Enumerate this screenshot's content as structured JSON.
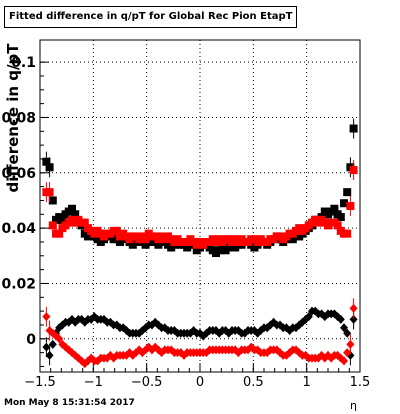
{
  "title": "Fitted difference in q/pT for Global Rec Pion EtapT",
  "timestamp": "Mon May  8 15:31:54 2017",
  "chart_data": {
    "type": "scatter",
    "title": "Fitted difference in q/pT for Global Rec Pion EtapT",
    "xlabel": "η",
    "ylabel": "difference in q/pT",
    "xlim": [
      -1.5,
      1.5
    ],
    "ylim": [
      -0.012,
      0.108
    ],
    "grid": true,
    "x_ticks": [
      "−1.5",
      "−1",
      "−0.5",
      "0",
      "0.5",
      "1",
      "1.5"
    ],
    "y_ticks": [
      "0",
      "0.02",
      "0.04",
      "0.06",
      "0.08",
      "0.1"
    ],
    "series": [
      {
        "marker": "square",
        "color": "#000000",
        "x": [
          -1.44,
          -1.41,
          -1.38,
          -1.35,
          -1.32,
          -1.29,
          -1.26,
          -1.23,
          -1.2,
          -1.17,
          -1.14,
          -1.11,
          -1.08,
          -1.05,
          -1.02,
          -0.99,
          -0.96,
          -0.93,
          -0.9,
          -0.87,
          -0.84,
          -0.81,
          -0.78,
          -0.75,
          -0.72,
          -0.69,
          -0.66,
          -0.63,
          -0.6,
          -0.57,
          -0.54,
          -0.51,
          -0.48,
          -0.45,
          -0.42,
          -0.39,
          -0.36,
          -0.33,
          -0.3,
          -0.27,
          -0.24,
          -0.21,
          -0.18,
          -0.15,
          -0.12,
          -0.09,
          -0.06,
          -0.03,
          0.0,
          0.03,
          0.06,
          0.09,
          0.12,
          0.15,
          0.18,
          0.21,
          0.24,
          0.27,
          0.3,
          0.33,
          0.36,
          0.39,
          0.42,
          0.45,
          0.48,
          0.51,
          0.54,
          0.57,
          0.6,
          0.63,
          0.66,
          0.69,
          0.72,
          0.75,
          0.78,
          0.81,
          0.84,
          0.87,
          0.9,
          0.93,
          0.96,
          0.99,
          1.02,
          1.05,
          1.08,
          1.11,
          1.14,
          1.17,
          1.2,
          1.23,
          1.26,
          1.29,
          1.32,
          1.35,
          1.38,
          1.41,
          1.44
        ],
        "y": [
          0.064,
          0.062,
          0.05,
          0.043,
          0.044,
          0.043,
          0.045,
          0.046,
          0.047,
          0.045,
          0.042,
          0.041,
          0.038,
          0.037,
          0.038,
          0.037,
          0.036,
          0.035,
          0.036,
          0.037,
          0.037,
          0.036,
          0.036,
          0.035,
          0.037,
          0.036,
          0.035,
          0.034,
          0.035,
          0.036,
          0.035,
          0.034,
          0.035,
          0.036,
          0.035,
          0.034,
          0.035,
          0.035,
          0.034,
          0.033,
          0.034,
          0.035,
          0.034,
          0.034,
          0.033,
          0.034,
          0.034,
          0.032,
          0.033,
          0.034,
          0.034,
          0.033,
          0.032,
          0.031,
          0.032,
          0.033,
          0.032,
          0.033,
          0.034,
          0.033,
          0.034,
          0.034,
          0.035,
          0.035,
          0.034,
          0.033,
          0.034,
          0.035,
          0.035,
          0.034,
          0.035,
          0.036,
          0.037,
          0.036,
          0.035,
          0.036,
          0.037,
          0.036,
          0.038,
          0.037,
          0.038,
          0.039,
          0.04,
          0.041,
          0.043,
          0.043,
          0.044,
          0.046,
          0.045,
          0.046,
          0.047,
          0.045,
          0.044,
          0.049,
          0.053,
          0.062,
          0.076
        ]
      },
      {
        "marker": "square",
        "color": "#ff0000",
        "x": [
          -1.44,
          -1.41,
          -1.38,
          -1.35,
          -1.32,
          -1.29,
          -1.26,
          -1.23,
          -1.2,
          -1.17,
          -1.14,
          -1.11,
          -1.08,
          -1.05,
          -1.02,
          -0.99,
          -0.96,
          -0.93,
          -0.9,
          -0.87,
          -0.84,
          -0.81,
          -0.78,
          -0.75,
          -0.72,
          -0.69,
          -0.66,
          -0.63,
          -0.6,
          -0.57,
          -0.54,
          -0.51,
          -0.48,
          -0.45,
          -0.42,
          -0.39,
          -0.36,
          -0.33,
          -0.3,
          -0.27,
          -0.24,
          -0.21,
          -0.18,
          -0.15,
          -0.12,
          -0.09,
          -0.06,
          -0.03,
          0.0,
          0.03,
          0.06,
          0.09,
          0.12,
          0.15,
          0.18,
          0.21,
          0.24,
          0.27,
          0.3,
          0.33,
          0.36,
          0.39,
          0.42,
          0.45,
          0.48,
          0.51,
          0.54,
          0.57,
          0.6,
          0.63,
          0.66,
          0.69,
          0.72,
          0.75,
          0.78,
          0.81,
          0.84,
          0.87,
          0.9,
          0.93,
          0.96,
          0.99,
          1.02,
          1.05,
          1.08,
          1.11,
          1.14,
          1.17,
          1.2,
          1.23,
          1.26,
          1.29,
          1.32,
          1.35,
          1.38,
          1.41,
          1.44
        ],
        "y": [
          0.053,
          0.053,
          0.041,
          0.038,
          0.038,
          0.04,
          0.041,
          0.042,
          0.043,
          0.042,
          0.043,
          0.042,
          0.042,
          0.04,
          0.039,
          0.038,
          0.039,
          0.038,
          0.037,
          0.038,
          0.038,
          0.039,
          0.039,
          0.037,
          0.038,
          0.037,
          0.036,
          0.037,
          0.037,
          0.036,
          0.037,
          0.036,
          0.038,
          0.037,
          0.037,
          0.036,
          0.037,
          0.036,
          0.037,
          0.036,
          0.035,
          0.036,
          0.035,
          0.035,
          0.035,
          0.036,
          0.035,
          0.034,
          0.035,
          0.034,
          0.035,
          0.035,
          0.036,
          0.035,
          0.036,
          0.035,
          0.036,
          0.036,
          0.035,
          0.036,
          0.035,
          0.036,
          0.035,
          0.035,
          0.036,
          0.036,
          0.035,
          0.036,
          0.035,
          0.035,
          0.036,
          0.036,
          0.037,
          0.037,
          0.036,
          0.037,
          0.038,
          0.038,
          0.039,
          0.04,
          0.039,
          0.04,
          0.041,
          0.042,
          0.043,
          0.042,
          0.043,
          0.042,
          0.041,
          0.042,
          0.042,
          0.041,
          0.039,
          0.038,
          0.038,
          0.048,
          0.061
        ]
      },
      {
        "marker": "diamond",
        "color": "#000000",
        "x": [
          -1.44,
          -1.41,
          -1.38,
          -1.35,
          -1.32,
          -1.29,
          -1.26,
          -1.23,
          -1.2,
          -1.17,
          -1.14,
          -1.11,
          -1.08,
          -1.05,
          -1.02,
          -0.99,
          -0.96,
          -0.93,
          -0.9,
          -0.87,
          -0.84,
          -0.81,
          -0.78,
          -0.75,
          -0.72,
          -0.69,
          -0.66,
          -0.63,
          -0.6,
          -0.57,
          -0.54,
          -0.51,
          -0.48,
          -0.45,
          -0.42,
          -0.39,
          -0.36,
          -0.33,
          -0.3,
          -0.27,
          -0.24,
          -0.21,
          -0.18,
          -0.15,
          -0.12,
          -0.09,
          -0.06,
          -0.03,
          0.0,
          0.03,
          0.06,
          0.09,
          0.12,
          0.15,
          0.18,
          0.21,
          0.24,
          0.27,
          0.3,
          0.33,
          0.36,
          0.39,
          0.42,
          0.45,
          0.48,
          0.51,
          0.54,
          0.57,
          0.6,
          0.63,
          0.66,
          0.69,
          0.72,
          0.75,
          0.78,
          0.81,
          0.84,
          0.87,
          0.9,
          0.93,
          0.96,
          0.99,
          1.02,
          1.05,
          1.08,
          1.11,
          1.14,
          1.17,
          1.2,
          1.23,
          1.26,
          1.29,
          1.32,
          1.35,
          1.38,
          1.41,
          1.44
        ],
        "y": [
          -0.003,
          -0.006,
          -0.002,
          0.002,
          0.004,
          0.005,
          0.006,
          0.006,
          0.007,
          0.006,
          0.007,
          0.007,
          0.006,
          0.007,
          0.007,
          0.008,
          0.007,
          0.007,
          0.007,
          0.006,
          0.006,
          0.005,
          0.005,
          0.004,
          0.004,
          0.003,
          0.002,
          0.002,
          0.002,
          0.002,
          0.003,
          0.004,
          0.005,
          0.005,
          0.006,
          0.005,
          0.004,
          0.004,
          0.003,
          0.003,
          0.003,
          0.002,
          0.002,
          0.002,
          0.002,
          0.002,
          0.003,
          0.002,
          0.002,
          0.001,
          0.002,
          0.003,
          0.003,
          0.003,
          0.002,
          0.003,
          0.003,
          0.002,
          0.003,
          0.003,
          0.003,
          0.002,
          0.002,
          0.003,
          0.003,
          0.003,
          0.002,
          0.003,
          0.004,
          0.004,
          0.005,
          0.006,
          0.005,
          0.005,
          0.004,
          0.004,
          0.003,
          0.004,
          0.004,
          0.005,
          0.006,
          0.007,
          0.008,
          0.01,
          0.01,
          0.009,
          0.009,
          0.008,
          0.009,
          0.009,
          0.009,
          0.008,
          0.007,
          0.004,
          0.002,
          -0.006,
          0.007
        ]
      },
      {
        "marker": "diamond",
        "color": "#ff0000",
        "x": [
          -1.44,
          -1.41,
          -1.38,
          -1.35,
          -1.32,
          -1.29,
          -1.26,
          -1.23,
          -1.2,
          -1.17,
          -1.14,
          -1.11,
          -1.08,
          -1.05,
          -1.02,
          -0.99,
          -0.96,
          -0.93,
          -0.9,
          -0.87,
          -0.84,
          -0.81,
          -0.78,
          -0.75,
          -0.72,
          -0.69,
          -0.66,
          -0.63,
          -0.6,
          -0.57,
          -0.54,
          -0.51,
          -0.48,
          -0.45,
          -0.42,
          -0.39,
          -0.36,
          -0.33,
          -0.3,
          -0.27,
          -0.24,
          -0.21,
          -0.18,
          -0.15,
          -0.12,
          -0.09,
          -0.06,
          -0.03,
          0.0,
          0.03,
          0.06,
          0.09,
          0.12,
          0.15,
          0.18,
          0.21,
          0.24,
          0.27,
          0.3,
          0.33,
          0.36,
          0.39,
          0.42,
          0.45,
          0.48,
          0.51,
          0.54,
          0.57,
          0.6,
          0.63,
          0.66,
          0.69,
          0.72,
          0.75,
          0.78,
          0.81,
          0.84,
          0.87,
          0.9,
          0.93,
          0.96,
          0.99,
          1.02,
          1.05,
          1.08,
          1.11,
          1.14,
          1.17,
          1.2,
          1.23,
          1.26,
          1.29,
          1.32,
          1.35,
          1.38,
          1.41,
          1.44
        ],
        "y": [
          0.008,
          0.003,
          0.002,
          0.001,
          0.0,
          -0.002,
          -0.003,
          -0.004,
          -0.005,
          -0.006,
          -0.007,
          -0.008,
          -0.009,
          -0.008,
          -0.007,
          -0.008,
          -0.008,
          -0.007,
          -0.007,
          -0.007,
          -0.006,
          -0.007,
          -0.006,
          -0.006,
          -0.006,
          -0.006,
          -0.005,
          -0.006,
          -0.005,
          -0.004,
          -0.005,
          -0.004,
          -0.003,
          -0.004,
          -0.003,
          -0.004,
          -0.005,
          -0.004,
          -0.004,
          -0.004,
          -0.005,
          -0.005,
          -0.005,
          -0.006,
          -0.005,
          -0.005,
          -0.005,
          -0.005,
          -0.005,
          -0.005,
          -0.005,
          -0.004,
          -0.004,
          -0.004,
          -0.004,
          -0.004,
          -0.004,
          -0.004,
          -0.004,
          -0.004,
          -0.005,
          -0.004,
          -0.004,
          -0.004,
          -0.003,
          -0.004,
          -0.004,
          -0.005,
          -0.005,
          -0.005,
          -0.004,
          -0.004,
          -0.004,
          -0.005,
          -0.006,
          -0.006,
          -0.005,
          -0.004,
          -0.004,
          -0.005,
          -0.006,
          -0.006,
          -0.007,
          -0.007,
          -0.007,
          -0.007,
          -0.006,
          -0.007,
          -0.006,
          -0.007,
          -0.006,
          -0.006,
          -0.007,
          -0.008,
          -0.005,
          -0.002,
          0.011
        ]
      }
    ]
  }
}
